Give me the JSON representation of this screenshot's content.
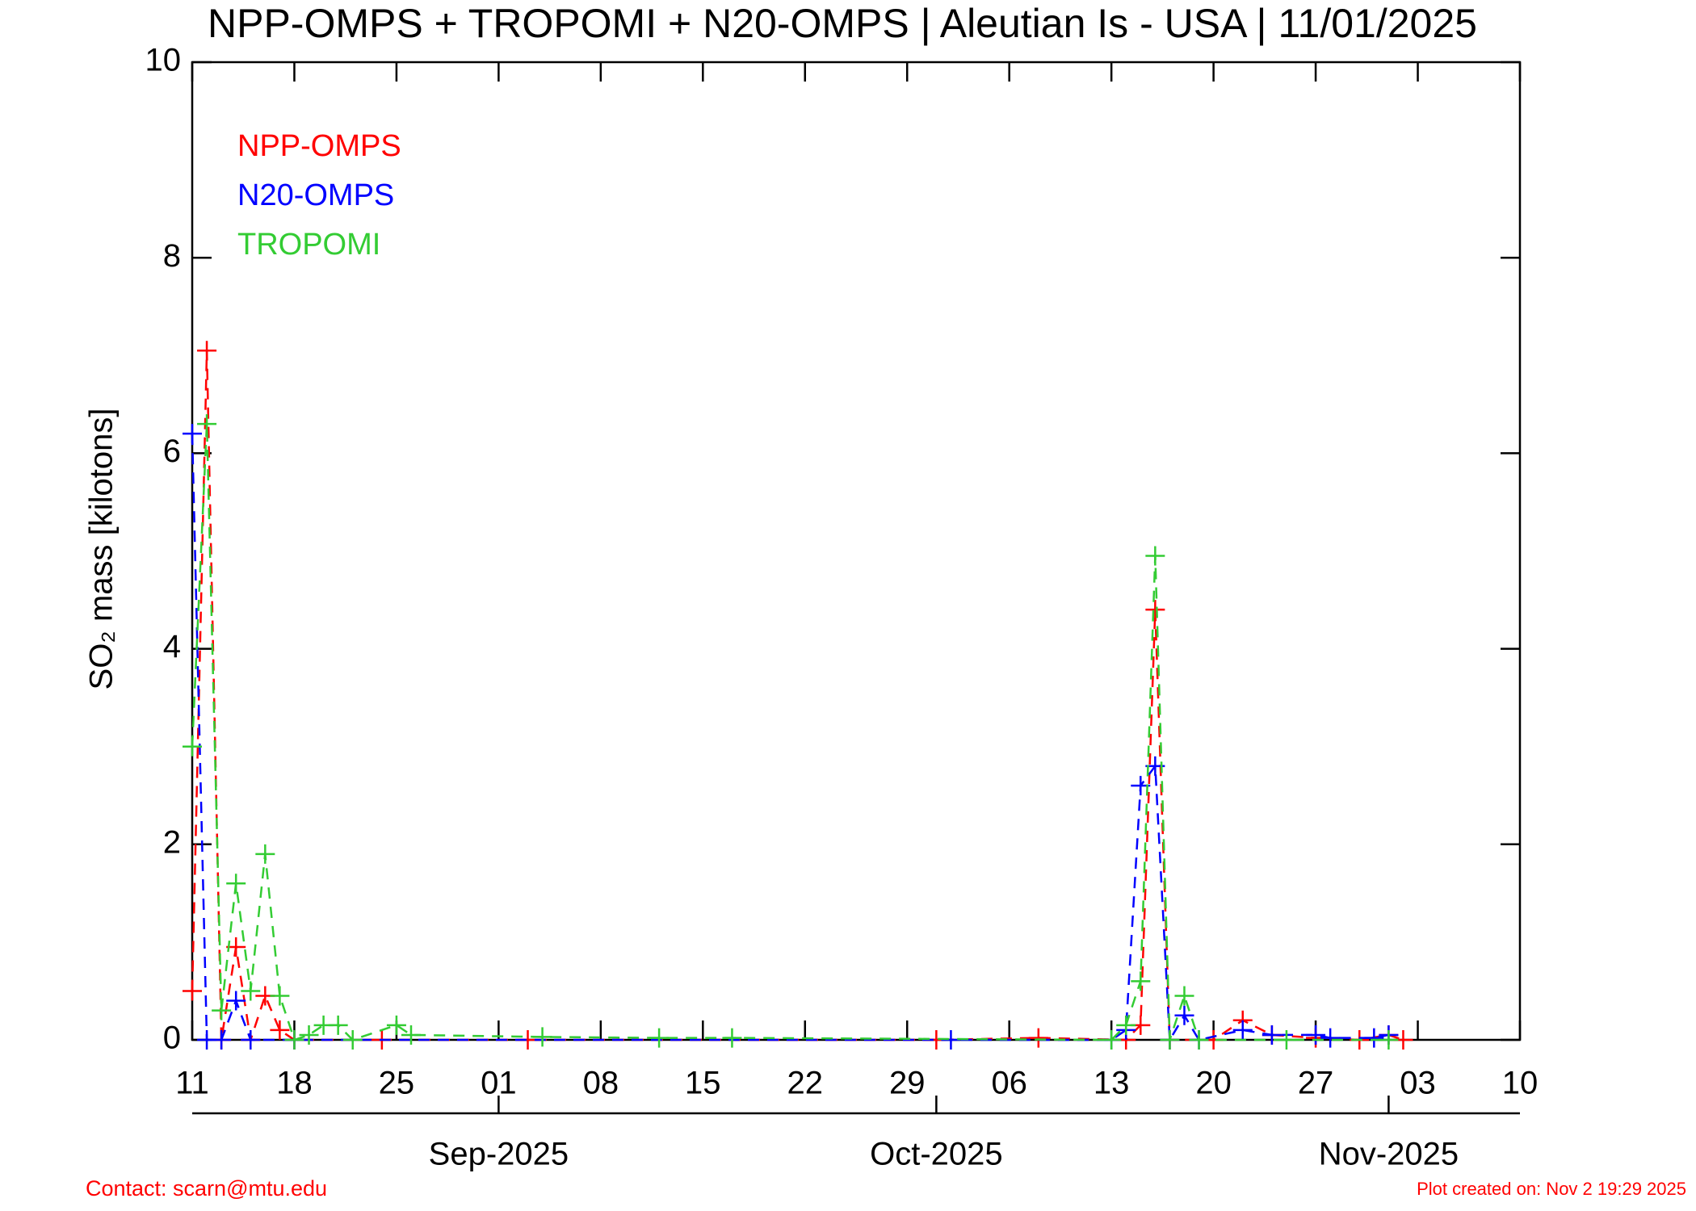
{
  "chart_data": {
    "type": "line",
    "title": "NPP-OMPS + TROPOMI + N20-OMPS | Aleutian Is - USA | 11/01/2025",
    "y_label": "SO₂ mass [kilotons]",
    "ylim": [
      0,
      10
    ],
    "yticks": [
      0,
      2,
      4,
      6,
      8,
      10
    ],
    "xlim": [
      "2025-08-11",
      "2025-11-10"
    ],
    "xticks": [
      {
        "value": "2025-08-11",
        "label": "11"
      },
      {
        "value": "2025-08-18",
        "label": "18"
      },
      {
        "value": "2025-08-25",
        "label": "25"
      },
      {
        "value": "2025-09-01",
        "label": "01"
      },
      {
        "value": "2025-09-08",
        "label": "08"
      },
      {
        "value": "2025-09-15",
        "label": "15"
      },
      {
        "value": "2025-09-22",
        "label": "22"
      },
      {
        "value": "2025-09-29",
        "label": "29"
      },
      {
        "value": "2025-10-06",
        "label": "06"
      },
      {
        "value": "2025-10-13",
        "label": "13"
      },
      {
        "value": "2025-10-20",
        "label": "20"
      },
      {
        "value": "2025-10-27",
        "label": "27"
      },
      {
        "value": "2025-11-03",
        "label": "03"
      },
      {
        "value": "2025-11-10",
        "label": "10"
      }
    ],
    "month_ticks": [
      {
        "value": "2025-09-01",
        "label": "Sep-2025"
      },
      {
        "value": "2025-10-01",
        "label": "Oct-2025"
      },
      {
        "value": "2025-11-01",
        "label": "Nov-2025"
      }
    ],
    "legend_position": "upper left",
    "series": [
      {
        "name": "NPP-OMPS",
        "color": "#ff0000",
        "x": [
          "2025-08-11",
          "2025-08-12",
          "2025-08-13",
          "2025-08-14",
          "2025-08-15",
          "2025-08-16",
          "2025-08-17",
          "2025-08-18",
          "2025-08-24",
          "2025-09-03",
          "2025-10-01",
          "2025-10-08",
          "2025-10-14",
          "2025-10-15",
          "2025-10-16",
          "2025-10-17",
          "2025-10-20",
          "2025-10-22",
          "2025-10-24",
          "2025-10-27",
          "2025-10-30",
          "2025-11-01",
          "2025-11-02"
        ],
        "values": [
          0.5,
          7.05,
          0,
          0.95,
          0,
          0.45,
          0.1,
          0,
          0,
          0,
          0,
          0.02,
          0,
          0.15,
          4.4,
          0,
          0,
          0.2,
          0.05,
          0.02,
          0,
          0.05,
          0
        ]
      },
      {
        "name": "N20-OMPS",
        "color": "#0000ff",
        "x": [
          "2025-08-11",
          "2025-08-12",
          "2025-08-13",
          "2025-08-14",
          "2025-08-15",
          "2025-08-18",
          "2025-10-02",
          "2025-10-13",
          "2025-10-14",
          "2025-10-15",
          "2025-10-16",
          "2025-10-17",
          "2025-10-18",
          "2025-10-19",
          "2025-10-22",
          "2025-10-24",
          "2025-10-27",
          "2025-10-28",
          "2025-10-31",
          "2025-11-01"
        ],
        "values": [
          6.2,
          0,
          0,
          0.4,
          0,
          0,
          0,
          0,
          0.1,
          2.6,
          2.8,
          0,
          0.25,
          0,
          0.1,
          0.05,
          0.05,
          0.02,
          0.02,
          0.05
        ]
      },
      {
        "name": "TROPOMI",
        "color": "#33cc33",
        "x": [
          "2025-08-11",
          "2025-08-12",
          "2025-08-13",
          "2025-08-14",
          "2025-08-15",
          "2025-08-16",
          "2025-08-17",
          "2025-08-18",
          "2025-08-19",
          "2025-08-20",
          "2025-08-21",
          "2025-08-22",
          "2025-08-25",
          "2025-08-26",
          "2025-09-04",
          "2025-09-12",
          "2025-09-17",
          "2025-10-13",
          "2025-10-14",
          "2025-10-15",
          "2025-10-16",
          "2025-10-17",
          "2025-10-18",
          "2025-10-19",
          "2025-10-25",
          "2025-11-01"
        ],
        "values": [
          3.0,
          6.3,
          0.3,
          1.6,
          0.5,
          1.9,
          0.45,
          0,
          0.05,
          0.15,
          0.15,
          0,
          0.15,
          0.05,
          0.03,
          0.02,
          0.02,
          0,
          0.15,
          0.6,
          4.95,
          0,
          0.45,
          0,
          0,
          0
        ]
      }
    ],
    "contact": "Contact: scarn@mtu.edu",
    "created": "Plot created on: Nov  2 19:29 2025"
  }
}
